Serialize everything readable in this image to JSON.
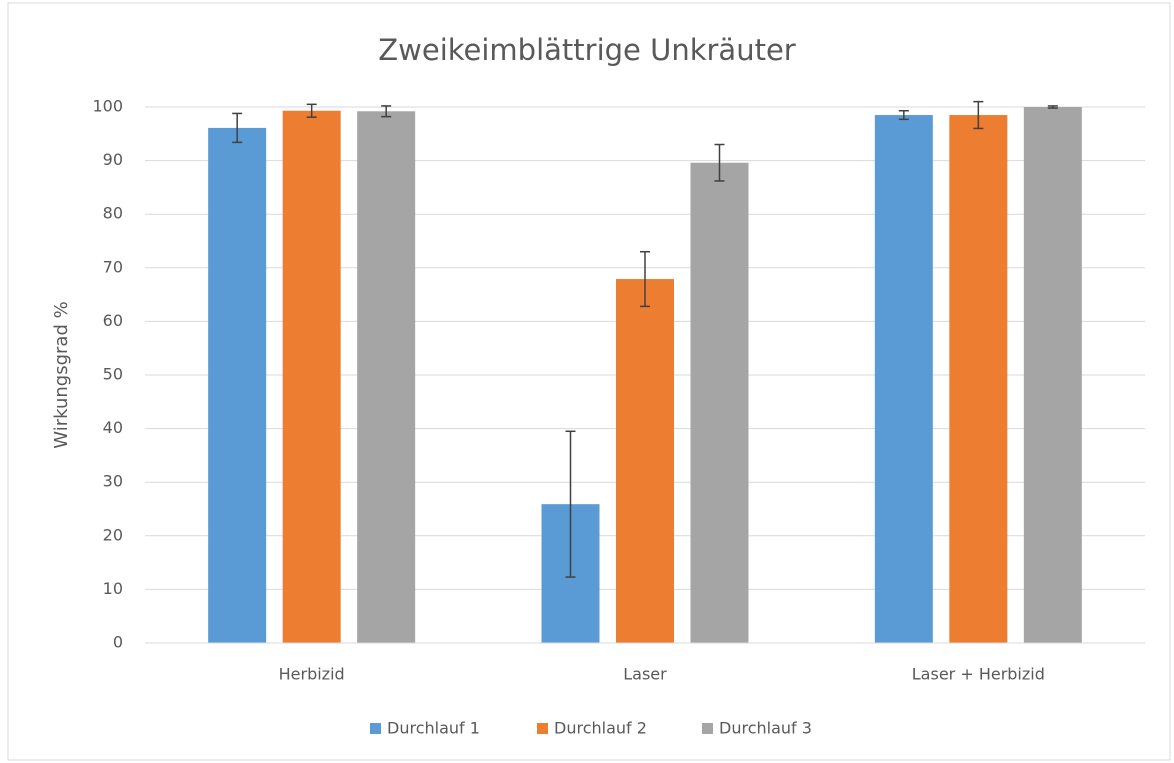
{
  "chart_data": {
    "type": "bar",
    "title": "Zweikeimblättrige Unkräuter",
    "y_label": "Wirkungsgrad %",
    "categories": [
      "Herbizid",
      "Laser",
      "Laser + Herbizid"
    ],
    "series": [
      {
        "name": "Durchlauf 1",
        "color": "#5b9bd5",
        "values": [
          96.1,
          25.9,
          98.5
        ],
        "errors": [
          2.7,
          13.6,
          0.8
        ]
      },
      {
        "name": "Durchlauf 2",
        "color": "#ed7d31",
        "values": [
          99.3,
          67.9,
          98.5
        ],
        "errors": [
          1.2,
          5.1,
          2.5
        ]
      },
      {
        "name": "Durchlauf 3",
        "color": "#a5a5a5",
        "values": [
          99.2,
          89.6,
          100
        ],
        "errors": [
          1,
          3.4,
          0.2
        ]
      }
    ],
    "ylim": [
      0,
      100
    ],
    "yticks": [
      0,
      10,
      20,
      30,
      40,
      50,
      60,
      70,
      80,
      90,
      100
    ],
    "grid": true,
    "legend": "bottom"
  }
}
